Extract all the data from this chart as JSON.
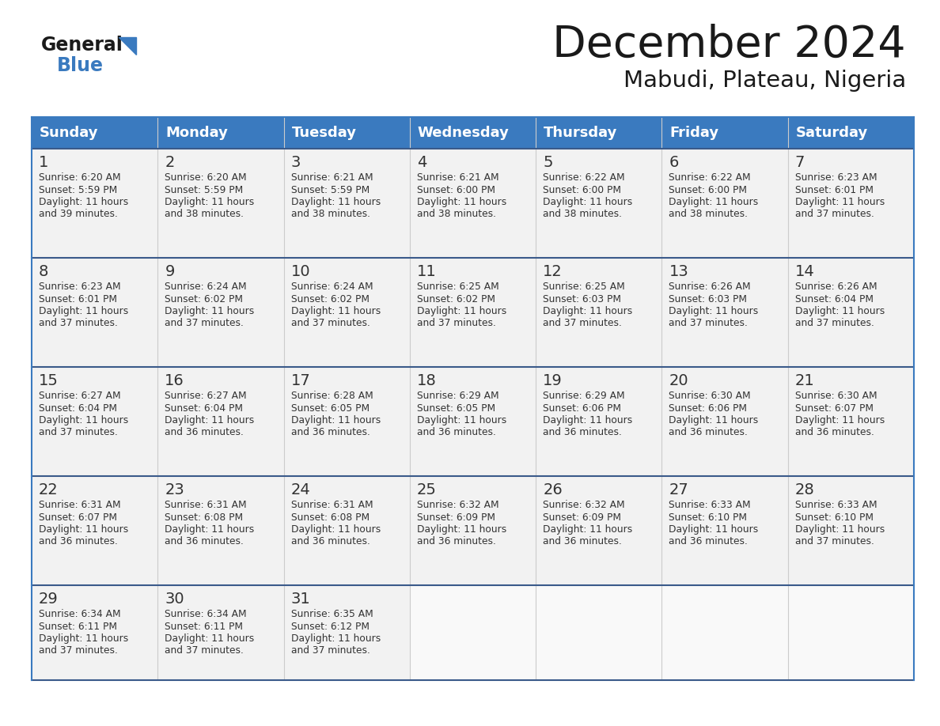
{
  "title": "December 2024",
  "subtitle": "Mabudi, Plateau, Nigeria",
  "header_bg_color": "#3a7abf",
  "header_text_color": "#ffffff",
  "cell_bg_color": "#f2f2f2",
  "border_color": "#3a7abf",
  "row_border_color": "#3a5a8a",
  "text_color": "#333333",
  "days_of_week": [
    "Sunday",
    "Monday",
    "Tuesday",
    "Wednesday",
    "Thursday",
    "Friday",
    "Saturday"
  ],
  "calendar_data": [
    [
      {
        "day": 1,
        "sunrise": "6:20 AM",
        "sunset": "5:59 PM",
        "daylight_hours": 11,
        "daylight_minutes": 39
      },
      {
        "day": 2,
        "sunrise": "6:20 AM",
        "sunset": "5:59 PM",
        "daylight_hours": 11,
        "daylight_minutes": 38
      },
      {
        "day": 3,
        "sunrise": "6:21 AM",
        "sunset": "5:59 PM",
        "daylight_hours": 11,
        "daylight_minutes": 38
      },
      {
        "day": 4,
        "sunrise": "6:21 AM",
        "sunset": "6:00 PM",
        "daylight_hours": 11,
        "daylight_minutes": 38
      },
      {
        "day": 5,
        "sunrise": "6:22 AM",
        "sunset": "6:00 PM",
        "daylight_hours": 11,
        "daylight_minutes": 38
      },
      {
        "day": 6,
        "sunrise": "6:22 AM",
        "sunset": "6:00 PM",
        "daylight_hours": 11,
        "daylight_minutes": 38
      },
      {
        "day": 7,
        "sunrise": "6:23 AM",
        "sunset": "6:01 PM",
        "daylight_hours": 11,
        "daylight_minutes": 37
      }
    ],
    [
      {
        "day": 8,
        "sunrise": "6:23 AM",
        "sunset": "6:01 PM",
        "daylight_hours": 11,
        "daylight_minutes": 37
      },
      {
        "day": 9,
        "sunrise": "6:24 AM",
        "sunset": "6:02 PM",
        "daylight_hours": 11,
        "daylight_minutes": 37
      },
      {
        "day": 10,
        "sunrise": "6:24 AM",
        "sunset": "6:02 PM",
        "daylight_hours": 11,
        "daylight_minutes": 37
      },
      {
        "day": 11,
        "sunrise": "6:25 AM",
        "sunset": "6:02 PM",
        "daylight_hours": 11,
        "daylight_minutes": 37
      },
      {
        "day": 12,
        "sunrise": "6:25 AM",
        "sunset": "6:03 PM",
        "daylight_hours": 11,
        "daylight_minutes": 37
      },
      {
        "day": 13,
        "sunrise": "6:26 AM",
        "sunset": "6:03 PM",
        "daylight_hours": 11,
        "daylight_minutes": 37
      },
      {
        "day": 14,
        "sunrise": "6:26 AM",
        "sunset": "6:04 PM",
        "daylight_hours": 11,
        "daylight_minutes": 37
      }
    ],
    [
      {
        "day": 15,
        "sunrise": "6:27 AM",
        "sunset": "6:04 PM",
        "daylight_hours": 11,
        "daylight_minutes": 37
      },
      {
        "day": 16,
        "sunrise": "6:27 AM",
        "sunset": "6:04 PM",
        "daylight_hours": 11,
        "daylight_minutes": 36
      },
      {
        "day": 17,
        "sunrise": "6:28 AM",
        "sunset": "6:05 PM",
        "daylight_hours": 11,
        "daylight_minutes": 36
      },
      {
        "day": 18,
        "sunrise": "6:29 AM",
        "sunset": "6:05 PM",
        "daylight_hours": 11,
        "daylight_minutes": 36
      },
      {
        "day": 19,
        "sunrise": "6:29 AM",
        "sunset": "6:06 PM",
        "daylight_hours": 11,
        "daylight_minutes": 36
      },
      {
        "day": 20,
        "sunrise": "6:30 AM",
        "sunset": "6:06 PM",
        "daylight_hours": 11,
        "daylight_minutes": 36
      },
      {
        "day": 21,
        "sunrise": "6:30 AM",
        "sunset": "6:07 PM",
        "daylight_hours": 11,
        "daylight_minutes": 36
      }
    ],
    [
      {
        "day": 22,
        "sunrise": "6:31 AM",
        "sunset": "6:07 PM",
        "daylight_hours": 11,
        "daylight_minutes": 36
      },
      {
        "day": 23,
        "sunrise": "6:31 AM",
        "sunset": "6:08 PM",
        "daylight_hours": 11,
        "daylight_minutes": 36
      },
      {
        "day": 24,
        "sunrise": "6:31 AM",
        "sunset": "6:08 PM",
        "daylight_hours": 11,
        "daylight_minutes": 36
      },
      {
        "day": 25,
        "sunrise": "6:32 AM",
        "sunset": "6:09 PM",
        "daylight_hours": 11,
        "daylight_minutes": 36
      },
      {
        "day": 26,
        "sunrise": "6:32 AM",
        "sunset": "6:09 PM",
        "daylight_hours": 11,
        "daylight_minutes": 36
      },
      {
        "day": 27,
        "sunrise": "6:33 AM",
        "sunset": "6:10 PM",
        "daylight_hours": 11,
        "daylight_minutes": 36
      },
      {
        "day": 28,
        "sunrise": "6:33 AM",
        "sunset": "6:10 PM",
        "daylight_hours": 11,
        "daylight_minutes": 37
      }
    ],
    [
      {
        "day": 29,
        "sunrise": "6:34 AM",
        "sunset": "6:11 PM",
        "daylight_hours": 11,
        "daylight_minutes": 37
      },
      {
        "day": 30,
        "sunrise": "6:34 AM",
        "sunset": "6:11 PM",
        "daylight_hours": 11,
        "daylight_minutes": 37
      },
      {
        "day": 31,
        "sunrise": "6:35 AM",
        "sunset": "6:12 PM",
        "daylight_hours": 11,
        "daylight_minutes": 37
      },
      null,
      null,
      null,
      null
    ]
  ]
}
